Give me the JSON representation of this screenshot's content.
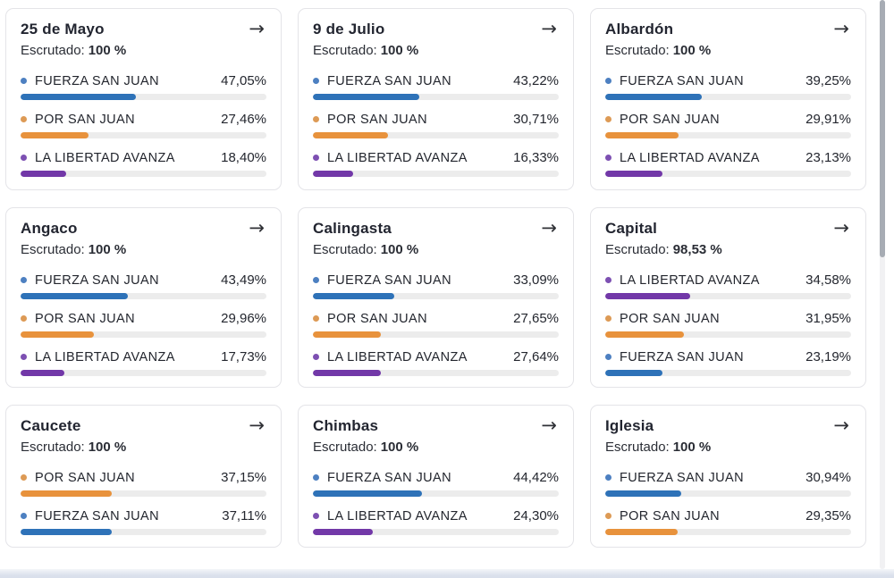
{
  "labels": {
    "escrutado": "Escrutado:"
  },
  "icons": {
    "arrow_right": "→"
  },
  "party_colors": {
    "blue": {
      "bar": "#2e72b8",
      "dot": "#4d80c1"
    },
    "orange": {
      "bar": "#e8923c",
      "dot": "#dd9a55"
    },
    "purple": {
      "bar": "#7238a8",
      "dot": "#7d50b2"
    }
  },
  "page": {
    "footer_strip_color": "#dbe1ec"
  },
  "cards": [
    {
      "title": "25 de Mayo",
      "escrutado": "100 %",
      "rows": [
        {
          "party": "FUERZA SAN JUAN",
          "color": "blue",
          "percent": 47.05,
          "percent_label": "47,05%"
        },
        {
          "party": "POR SAN JUAN",
          "color": "orange",
          "percent": 27.46,
          "percent_label": "27,46%"
        },
        {
          "party": "LA LIBERTAD AVANZA",
          "color": "purple",
          "percent": 18.4,
          "percent_label": "18,40%"
        }
      ]
    },
    {
      "title": "9 de Julio",
      "escrutado": "100 %",
      "rows": [
        {
          "party": "FUERZA SAN JUAN",
          "color": "blue",
          "percent": 43.22,
          "percent_label": "43,22%"
        },
        {
          "party": "POR SAN JUAN",
          "color": "orange",
          "percent": 30.71,
          "percent_label": "30,71%"
        },
        {
          "party": "LA LIBERTAD AVANZA",
          "color": "purple",
          "percent": 16.33,
          "percent_label": "16,33%"
        }
      ]
    },
    {
      "title": "Albardón",
      "escrutado": "100 %",
      "rows": [
        {
          "party": "FUERZA SAN JUAN",
          "color": "blue",
          "percent": 39.25,
          "percent_label": "39,25%"
        },
        {
          "party": "POR SAN JUAN",
          "color": "orange",
          "percent": 29.91,
          "percent_label": "29,91%"
        },
        {
          "party": "LA LIBERTAD AVANZA",
          "color": "purple",
          "percent": 23.13,
          "percent_label": "23,13%"
        }
      ]
    },
    {
      "title": "Angaco",
      "escrutado": "100 %",
      "rows": [
        {
          "party": "FUERZA SAN JUAN",
          "color": "blue",
          "percent": 43.49,
          "percent_label": "43,49%"
        },
        {
          "party": "POR SAN JUAN",
          "color": "orange",
          "percent": 29.96,
          "percent_label": "29,96%"
        },
        {
          "party": "LA LIBERTAD AVANZA",
          "color": "purple",
          "percent": 17.73,
          "percent_label": "17,73%"
        }
      ]
    },
    {
      "title": "Calingasta",
      "escrutado": "100 %",
      "rows": [
        {
          "party": "FUERZA SAN JUAN",
          "color": "blue",
          "percent": 33.09,
          "percent_label": "33,09%"
        },
        {
          "party": "POR SAN JUAN",
          "color": "orange",
          "percent": 27.65,
          "percent_label": "27,65%"
        },
        {
          "party": "LA LIBERTAD AVANZA",
          "color": "purple",
          "percent": 27.64,
          "percent_label": "27,64%"
        }
      ]
    },
    {
      "title": "Capital",
      "escrutado": "98,53 %",
      "rows": [
        {
          "party": "LA LIBERTAD AVANZA",
          "color": "purple",
          "percent": 34.58,
          "percent_label": "34,58%"
        },
        {
          "party": "POR SAN JUAN",
          "color": "orange",
          "percent": 31.95,
          "percent_label": "31,95%"
        },
        {
          "party": "FUERZA SAN JUAN",
          "color": "blue",
          "percent": 23.19,
          "percent_label": "23,19%"
        }
      ]
    },
    {
      "title": "Caucete",
      "escrutado": "100 %",
      "rows": [
        {
          "party": "POR SAN JUAN",
          "color": "orange",
          "percent": 37.15,
          "percent_label": "37,15%"
        },
        {
          "party": "FUERZA SAN JUAN",
          "color": "blue",
          "percent": 37.11,
          "percent_label": "37,11%"
        }
      ]
    },
    {
      "title": "Chimbas",
      "escrutado": "100 %",
      "rows": [
        {
          "party": "FUERZA SAN JUAN",
          "color": "blue",
          "percent": 44.42,
          "percent_label": "44,42%"
        },
        {
          "party": "LA LIBERTAD AVANZA",
          "color": "purple",
          "percent": 24.3,
          "percent_label": "24,30%"
        }
      ]
    },
    {
      "title": "Iglesia",
      "escrutado": "100 %",
      "rows": [
        {
          "party": "FUERZA SAN JUAN",
          "color": "blue",
          "percent": 30.94,
          "percent_label": "30,94%"
        },
        {
          "party": "POR SAN JUAN",
          "color": "orange",
          "percent": 29.35,
          "percent_label": "29,35%"
        }
      ]
    }
  ]
}
